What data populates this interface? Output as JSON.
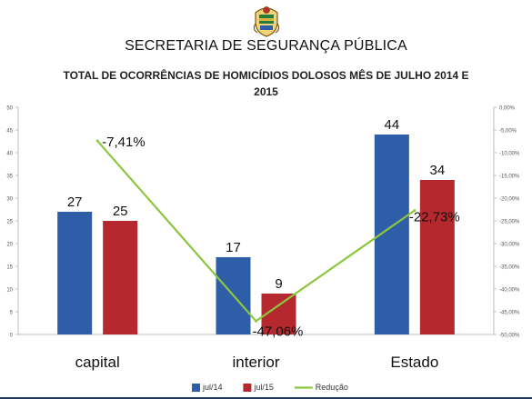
{
  "header": {
    "organization": "SECRETARIA DE SEGURANÇA PÚBLICA"
  },
  "chart_data": {
    "type": "bar",
    "title": "TOTAL DE OCORRÊNCIAS DE HOMICÍDIOS DOLOSOS MÊS DE JULHO 2014 E 2015",
    "categories": [
      "capital",
      "interior",
      "Estado"
    ],
    "series": [
      {
        "name": "jul/14",
        "type": "bar",
        "color": "#2e5ea8",
        "values": [
          27,
          17,
          44
        ]
      },
      {
        "name": "jul/15",
        "type": "bar",
        "color": "#b5282e",
        "values": [
          25,
          9,
          34
        ]
      },
      {
        "name": "Redução",
        "type": "line",
        "axis": "secondary",
        "color": "#8cc63f",
        "values": [
          -7.41,
          -47.06,
          -22.73
        ],
        "labels": [
          "-7,41%",
          "-47,06%",
          "-22,73%"
        ]
      }
    ],
    "bar_labels": [
      [
        "27",
        "17",
        "44"
      ],
      [
        "25",
        "9",
        "34"
      ]
    ],
    "ylim": [
      0,
      50
    ],
    "yticks": [
      "0",
      "5",
      "10",
      "15",
      "20",
      "25",
      "30",
      "35",
      "40",
      "45",
      "50"
    ],
    "y2lim": [
      -50,
      0
    ],
    "y2ticks": [
      "0,00%",
      "-5,00%",
      "-10,00%",
      "-15,00%",
      "-20,00%",
      "-25,00%",
      "-30,00%",
      "-35,00%",
      "-40,00%",
      "-45,00%",
      "-50,00%"
    ],
    "grid": false,
    "legend_position": "bottom",
    "colors": {
      "primary_bar": "#2e5ea8",
      "secondary_bar": "#b5282e",
      "line": "#8cc63f"
    }
  }
}
